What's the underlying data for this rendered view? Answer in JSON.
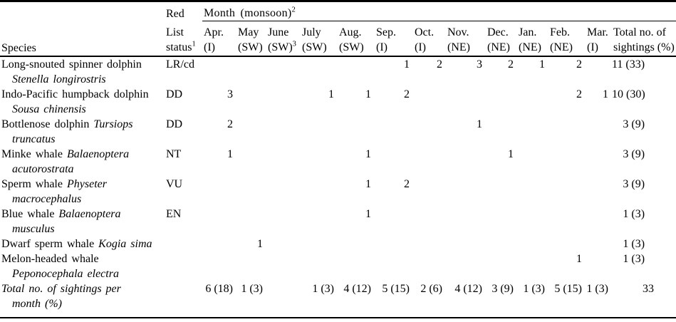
{
  "table": {
    "columns": {
      "species_header": "Species",
      "red_list_header": {
        "line1": "Red",
        "line2": "List",
        "line3": "status",
        "footnote": "1"
      },
      "month_spanner": {
        "label": "Month (monsoon)",
        "footnote": "2"
      },
      "months": [
        {
          "abbr": "Apr.",
          "monsoon": "(I)",
          "footnote": ""
        },
        {
          "abbr": "May",
          "monsoon": "(SW)",
          "footnote": ""
        },
        {
          "abbr": "June",
          "monsoon": "(SW)",
          "footnote": "3"
        },
        {
          "abbr": "July",
          "monsoon": "(SW)",
          "footnote": ""
        },
        {
          "abbr": "Aug.",
          "monsoon": "(SW)",
          "footnote": ""
        },
        {
          "abbr": "Sep.",
          "monsoon": "(I)",
          "footnote": ""
        },
        {
          "abbr": "Oct.",
          "monsoon": "(I)",
          "footnote": ""
        },
        {
          "abbr": "Nov.",
          "monsoon": "(NE)",
          "footnote": ""
        },
        {
          "abbr": "Dec.",
          "monsoon": "(NE)",
          "footnote": ""
        },
        {
          "abbr": "Jan.",
          "monsoon": "(NE)",
          "footnote": ""
        },
        {
          "abbr": "Feb.",
          "monsoon": "(NE)",
          "footnote": ""
        },
        {
          "abbr": "Mar.",
          "monsoon": "(I)",
          "footnote": ""
        }
      ],
      "total_header": {
        "line1": "Total no. of",
        "line2": "sightings (%)"
      }
    },
    "rows": [
      {
        "name_roman": "Long-snouted spinner dolphin",
        "name_italic": "",
        "name_line2_italic": "Stenella longirostris",
        "status": "LR/cd",
        "values": [
          "",
          "",
          "",
          "",
          "",
          "1",
          "2",
          "3",
          "2",
          "1",
          "2",
          ""
        ],
        "total": "11 (33)"
      },
      {
        "name_roman": "Indo-Pacific humpback dolphin",
        "name_italic": "",
        "name_line2_italic": "Sousa chinensis",
        "status": "DD",
        "values": [
          "3",
          "",
          "",
          "1",
          "1",
          "2",
          "",
          "",
          "",
          "",
          "2",
          "1"
        ],
        "total": "10 (30)"
      },
      {
        "name_roman": "Bottlenose dolphin",
        "name_italic": "Tursiops",
        "name_line2_italic": "truncatus",
        "status": "DD",
        "values": [
          "2",
          "",
          "",
          "",
          "",
          "",
          "",
          "1",
          "",
          "",
          "",
          ""
        ],
        "total": "3 (9)"
      },
      {
        "name_roman": "Minke whale",
        "name_italic": "Balaenoptera",
        "name_line2_italic": "acutorostrata",
        "status": "NT",
        "values": [
          "1",
          "",
          "",
          "",
          "1",
          "",
          "",
          "",
          "1",
          "",
          "",
          ""
        ],
        "total": "3 (9)"
      },
      {
        "name_roman": "Sperm whale",
        "name_italic": "Physeter",
        "name_line2_italic": "macrocephalus",
        "status": "VU",
        "values": [
          "",
          "",
          "",
          "",
          "1",
          "2",
          "",
          "",
          "",
          "",
          "",
          ""
        ],
        "total": "3 (9)"
      },
      {
        "name_roman": "Blue whale",
        "name_italic": "Balaenoptera",
        "name_line2_italic": "musculus",
        "status": "EN",
        "values": [
          "",
          "",
          "",
          "",
          "1",
          "",
          "",
          "",
          "",
          "",
          "",
          ""
        ],
        "total": "1 (3)"
      },
      {
        "name_roman": "Dwarf sperm whale",
        "name_italic": "Kogia sima",
        "name_line2_italic": "",
        "status": "",
        "values": [
          "",
          "1",
          "",
          "",
          "",
          "",
          "",
          "",
          "",
          "",
          "",
          ""
        ],
        "total": "1 (3)"
      },
      {
        "name_roman": "Melon-headed whale",
        "name_italic": "",
        "name_line2_italic": "Peponocephala electra",
        "status": "",
        "values": [
          "",
          "",
          "",
          "",
          "",
          "",
          "",
          "",
          "",
          "",
          "1",
          ""
        ],
        "total": "1 (3)"
      }
    ],
    "totals_row": {
      "label_line1": "Total no. of sightings per",
      "label_line2": "month (%)",
      "values": [
        "6 (18)",
        "1 (3)",
        "",
        "1 (3)",
        "4 (12)",
        "5 (15)",
        "2 (6)",
        "4 (12)",
        "3 (9)",
        "1 (3)",
        "5 (15)",
        "1 (3)"
      ],
      "grand_total": "33"
    }
  }
}
